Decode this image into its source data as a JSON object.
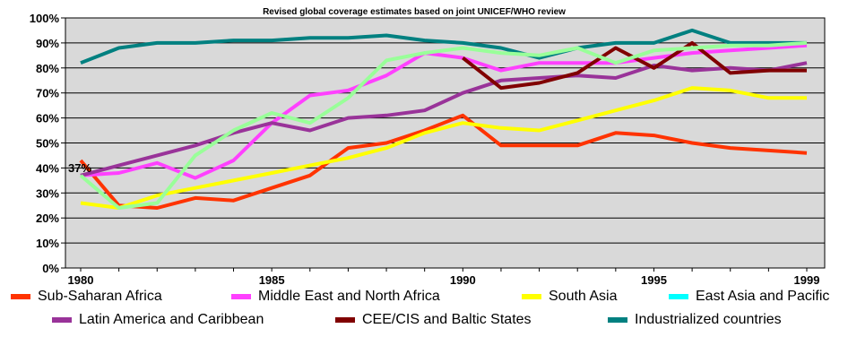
{
  "chart_data": {
    "type": "line",
    "title": "Revised global coverage estimates based on joint UNICEF/WHO review",
    "x": [
      1980,
      1981,
      1982,
      1983,
      1984,
      1985,
      1986,
      1987,
      1988,
      1989,
      1990,
      1991,
      1992,
      1993,
      1994,
      1995,
      1996,
      1997,
      1998,
      1999
    ],
    "x_ticks": [
      "1980",
      "1985",
      "1990",
      "1995",
      "1999"
    ],
    "y_ticks": [
      "0%",
      "10%",
      "20%",
      "30%",
      "40%",
      "50%",
      "60%",
      "70%",
      "80%",
      "90%",
      "100%"
    ],
    "ylim": [
      0,
      100
    ],
    "grid": "horizontal",
    "legend_position": "bottom",
    "annotations": [
      "37%"
    ],
    "series": [
      {
        "name": "Sub-Saharan Africa",
        "color": "#FF3300",
        "values": [
          43,
          25,
          24,
          28,
          27,
          32,
          37,
          48,
          50,
          55,
          61,
          49,
          49,
          49,
          54,
          53,
          50,
          48,
          47,
          46
        ]
      },
      {
        "name": "Middle East and North Africa",
        "color": "#FF40FF",
        "values": [
          37,
          38,
          42,
          36,
          43,
          58,
          69,
          71,
          77,
          86,
          84,
          79,
          82,
          82,
          82,
          84,
          86,
          87,
          88,
          89
        ]
      },
      {
        "name": "South Asia",
        "color": "#FFFF00",
        "values": [
          26,
          24,
          29,
          32,
          35,
          38,
          41,
          44,
          48,
          54,
          58,
          56,
          55,
          59,
          63,
          67,
          72,
          71,
          68,
          68
        ]
      },
      {
        "name": "East Asia and Pacific",
        "color": "#00FFFF",
        "values": [
          null,
          null,
          null,
          null,
          null,
          null,
          null,
          null,
          null,
          null,
          null,
          null,
          null,
          null,
          null,
          null,
          null,
          null,
          null,
          null
        ]
      },
      {
        "name": "Latin America and Caribbean",
        "color": "#993399",
        "values": [
          37,
          41,
          45,
          49,
          54,
          58,
          55,
          60,
          61,
          63,
          70,
          75,
          76,
          77,
          76,
          81,
          79,
          80,
          79,
          82
        ]
      },
      {
        "name": "CEE/CIS and Baltic States",
        "color": "#800000",
        "values": [
          null,
          null,
          null,
          null,
          null,
          null,
          null,
          null,
          null,
          null,
          84,
          72,
          74,
          78,
          88,
          80,
          90,
          78,
          79,
          79
        ]
      },
      {
        "name": "Industrialized countries",
        "color": "#008080",
        "values": [
          82,
          88,
          90,
          90,
          91,
          91,
          92,
          92,
          93,
          91,
          90,
          88,
          84,
          88,
          90,
          90,
          95,
          90,
          90,
          90
        ]
      },
      {
        "name": "",
        "color": "#99FF99",
        "values": [
          37,
          24,
          26,
          45,
          55,
          62,
          58,
          68,
          83,
          86,
          88,
          86,
          85,
          88,
          82,
          87,
          88,
          89,
          89,
          90
        ]
      }
    ]
  }
}
